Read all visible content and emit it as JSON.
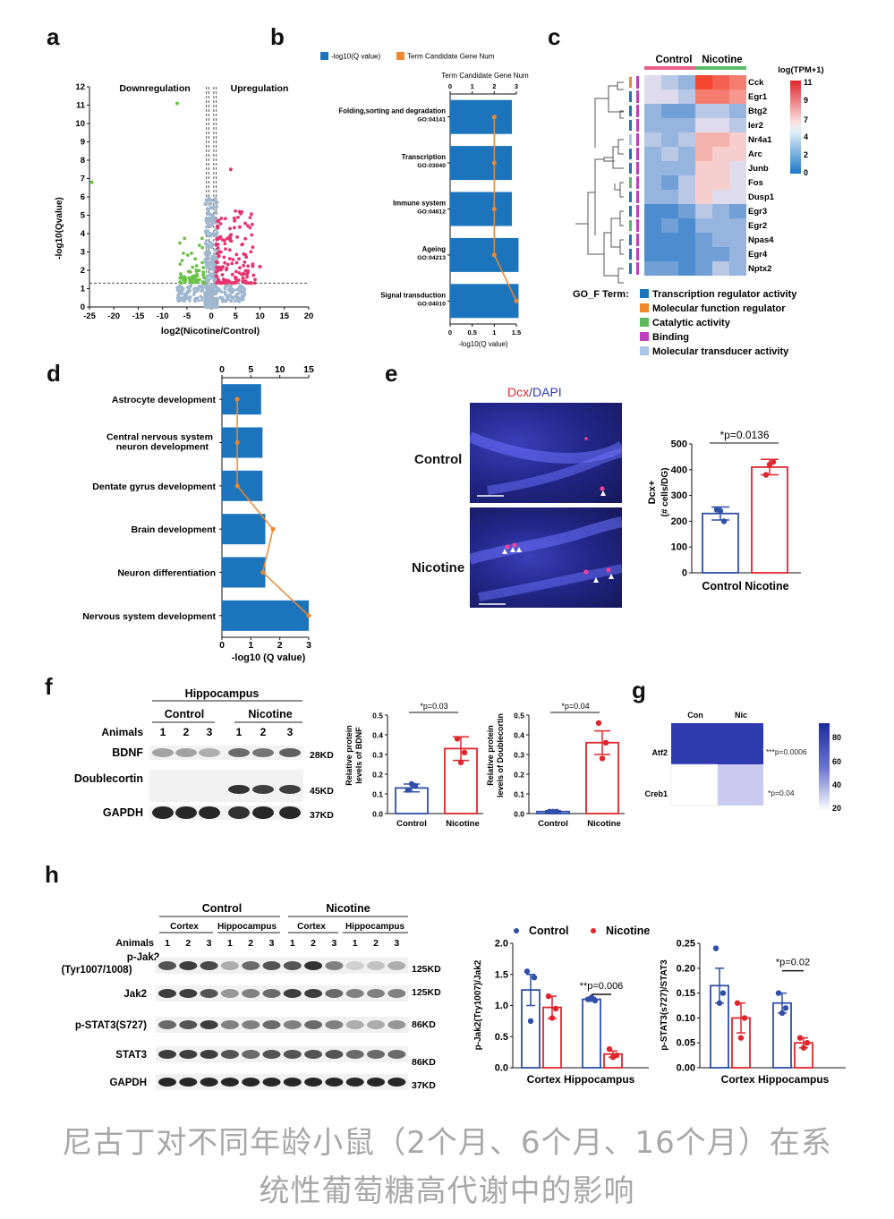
{
  "panels": {
    "a": "a",
    "b": "b",
    "c": "c",
    "d": "d",
    "e": "e",
    "f": "f",
    "g": "g",
    "h": "h"
  },
  "panel_a": {
    "left_label": "Downregulation",
    "right_label": "Upregulation",
    "xlabel": "log2(Nicotine/Control)",
    "ylabel": "-log10(Qvalue)",
    "xticks": [
      "-25",
      "-20",
      "-15",
      "-10",
      "-5",
      "0",
      "5",
      "10",
      "15",
      "20"
    ],
    "yticks": [
      "0",
      "1",
      "2",
      "3",
      "4",
      "5",
      "6",
      "7",
      "8",
      "9",
      "10",
      "11",
      "12"
    ],
    "colors": {
      "down": "#6cc24a",
      "up": "#e8336f",
      "ns": "#9fb7cf"
    }
  },
  "panel_b": {
    "legend_q": "-log10(Q value)",
    "legend_num": "Term Candidate Gene Num",
    "top_axis_title": "Term Candidate Gene Num",
    "top_ticks": [
      "0",
      "1",
      "2",
      "3"
    ],
    "bottom_ticks": [
      "0",
      "0.5",
      "1",
      "1.5"
    ],
    "xlabel": "-log10(Q value)",
    "terms": [
      {
        "name": "Folding,sorting and degradation",
        "id": "GO:04141"
      },
      {
        "name": "Transcription",
        "id": "GO:03040"
      },
      {
        "name": "Immune system",
        "id": "GO:04612"
      },
      {
        "name": "Ageing",
        "id": "GO:04213"
      },
      {
        "name": "Signal transduction",
        "id": "GO:04010"
      }
    ],
    "colors": {
      "bar": "#1c75bc",
      "line": "#f0882c"
    }
  },
  "panel_c": {
    "group_control": "Control",
    "group_nicotine": "Nicotine",
    "scale_title": "log(TPM+1)",
    "scale_ticks": [
      "11",
      "9",
      "7",
      "4",
      "2",
      "0"
    ],
    "genes": [
      "Cck",
      "Egr1",
      "Btg2",
      "Ier2",
      "Nr4a1",
      "Arc",
      "Junb",
      "Fos",
      "Dusp1",
      "Egr3",
      "Egr2",
      "Npas4",
      "Egr4",
      "Nptx2"
    ],
    "go_title": "GO_F Term:",
    "go_terms": [
      {
        "label": "Transcription regulator activity",
        "color": "#1c75bc"
      },
      {
        "label": "Molecular function regulator",
        "color": "#f0882c"
      },
      {
        "label": "Catalytic activity",
        "color": "#5cb85c"
      },
      {
        "label": "Binding",
        "color": "#c03fbf"
      },
      {
        "label": "Molecular transducer activity",
        "color": "#a9c6e8"
      }
    ]
  },
  "panel_d": {
    "top_ticks": [
      "0",
      "5",
      "10",
      "15"
    ],
    "bottom_ticks": [
      "0",
      "1",
      "2",
      "3"
    ],
    "xlabel": "-log10 (Q value)",
    "terms": [
      "Astrocyte development",
      "Central nervous system",
      "neuron development",
      "Dentate gyrus development",
      "Brain development",
      "Neuron differentiation",
      "Nervous system development"
    ]
  },
  "panel_e": {
    "stain_dcx": "Dcx",
    "stain_sep": "/",
    "stain_dapi": "DAPI",
    "row_control": "Control",
    "row_nicotine": "Nicotine",
    "pvalue": "*p=0.0136",
    "ylabel": "Dcx+",
    "ylabel2": "(# cells/DG)",
    "yticks": [
      "0",
      "100",
      "200",
      "300",
      "400",
      "500"
    ],
    "xcats": "Control Nicotine"
  },
  "panel_f": {
    "region": "Hippocampus",
    "group_control": "Control",
    "group_nicotine": "Nicotine",
    "animals_label": "Animals",
    "animal_ids": [
      "1",
      "2",
      "3",
      "1",
      "2",
      "3"
    ],
    "proteins": [
      {
        "name": "BDNF",
        "kd": "28KD"
      },
      {
        "name": "Doublecortin",
        "kd": "45KD"
      },
      {
        "name": "GAPDH",
        "kd": "37KD"
      }
    ],
    "bdnf_ylabel": "Relative protein",
    "bdnf_ylabel2": "levels of BDNF",
    "bdnf_p": "*p=0.03",
    "dcx_ylabel": "Relative protein",
    "dcx_ylabel2": "levels of Doublecortin",
    "dcx_p": "*p=0.04",
    "yticks": [
      "0.0",
      "0.1",
      "0.2",
      "0.3",
      "0.4",
      "0.5"
    ],
    "xcat_control": "Control",
    "xcat_nicotine": "Nicotine"
  },
  "panel_g": {
    "col_con": "Con",
    "col_nic": "Nic",
    "row_atf2": "Atf2",
    "row_creb1": "Creb1",
    "p_atf2": "***p=0.0006",
    "p_creb1": "*p=0.04",
    "scale_ticks": [
      "80",
      "60",
      "40",
      "20"
    ]
  },
  "panel_h": {
    "group_control": "Control",
    "group_nicotine": "Nicotine",
    "sub_cortex": "Cortex",
    "sub_hippo": "Hippocampus",
    "animals_label": "Animals",
    "animal_ids": [
      "1",
      "2",
      "3",
      "1",
      "2",
      "3",
      "1",
      "2",
      "3",
      "1",
      "2",
      "3"
    ],
    "proteins": [
      {
        "name": "p-Jak2",
        "name2": "(Tyr1007/1008)",
        "kd": "125KD"
      },
      {
        "name": "Jak2",
        "name2": "",
        "kd": "125KD"
      },
      {
        "name": "p-STAT3(S727)",
        "name2": "",
        "kd": "86KD"
      },
      {
        "name": "STAT3",
        "name2": "",
        "kd": "86KD"
      },
      {
        "name": "GAPDH",
        "name2": "",
        "kd": "37KD"
      }
    ],
    "legend_control": "Control",
    "legend_nicotine": "Nicotine",
    "jak_ylabel": "p-Jak2(Try1007)/Jak2",
    "jak_yticks": [
      "0.0",
      "0.5",
      "1.0",
      "1.5",
      "2.0"
    ],
    "jak_p": "**p=0.006",
    "stat_ylabel": "p-STAT3(s727)/STAT3",
    "stat_yticks": [
      "0.00",
      "0.05",
      "0.10",
      "0.15",
      "0.20",
      "0.25"
    ],
    "stat_p": "*p=0.02",
    "xcats": "Cortex Hippocampus"
  },
  "chart_data": [
    {
      "type": "bar",
      "panel": "e",
      "categories": [
        "Control",
        "Nicotine"
      ],
      "values": [
        230,
        410
      ],
      "errors": [
        25,
        30
      ],
      "points": [
        [
          245,
          200,
          240
        ],
        [
          380,
          430,
          420
        ]
      ],
      "ylim": [
        0,
        500
      ],
      "ylabel": "Dcx+ (# cells/DG)"
    },
    {
      "type": "bar",
      "panel": "f-bdnf",
      "categories": [
        "Control",
        "Nicotine"
      ],
      "values": [
        0.13,
        0.33
      ],
      "errors": [
        0.02,
        0.06
      ],
      "points": [
        [
          0.12,
          0.14,
          0.15
        ],
        [
          0.38,
          0.31,
          0.26
        ]
      ],
      "ylim": [
        0,
        0.5
      ],
      "ylabel": "Relative protein levels of BDNF"
    },
    {
      "type": "bar",
      "panel": "f-dcx",
      "categories": [
        "Control",
        "Nicotine"
      ],
      "values": [
        0.01,
        0.36
      ],
      "errors": [
        0.005,
        0.06
      ],
      "points": [
        [
          0.01,
          0.01,
          0.01
        ],
        [
          0.46,
          0.36,
          0.28
        ]
      ],
      "ylim": [
        0,
        0.5
      ],
      "ylabel": "Relative protein levels of Doublecortin"
    },
    {
      "type": "bar",
      "panel": "h-jak",
      "categories": [
        "Cortex",
        "Hippocampus"
      ],
      "series": [
        {
          "name": "Control",
          "values": [
            1.25,
            1.1
          ],
          "errors": [
            0.25,
            0.03
          ],
          "points": [
            [
              1.55,
              1.45,
              0.75
            ],
            [
              1.1,
              1.08,
              1.13
            ]
          ]
        },
        {
          "name": "Nicotine",
          "values": [
            0.97,
            0.22
          ],
          "errors": [
            0.18,
            0.05
          ],
          "points": [
            [
              1.15,
              0.95,
              0.8
            ],
            [
              0.3,
              0.2,
              0.17
            ]
          ]
        }
      ],
      "ylim": [
        0,
        2.0
      ],
      "ylabel": "p-Jak2(Try1007)/Jak2"
    },
    {
      "type": "bar",
      "panel": "h-stat",
      "categories": [
        "Cortex",
        "Hippocampus"
      ],
      "series": [
        {
          "name": "Control",
          "values": [
            0.165,
            0.13
          ],
          "errors": [
            0.035,
            0.02
          ],
          "points": [
            [
              0.24,
              0.15,
              0.13
            ],
            [
              0.15,
              0.12,
              0.11
            ]
          ]
        },
        {
          "name": "Nicotine",
          "values": [
            0.1,
            0.05
          ],
          "errors": [
            0.03,
            0.01
          ],
          "points": [
            [
              0.13,
              0.1,
              0.06
            ],
            [
              0.06,
              0.05,
              0.04
            ]
          ]
        }
      ],
      "ylim": [
        0,
        0.25
      ],
      "ylabel": "p-STAT3(s727)/STAT3"
    },
    {
      "type": "bar",
      "panel": "b",
      "categories": [
        "Folding,sorting and degradation",
        "Transcription",
        "Immune system",
        "Ageing",
        "Signal transduction"
      ],
      "values": [
        1.4,
        1.4,
        1.4,
        1.55,
        1.55
      ],
      "line_values": [
        2.0,
        2.0,
        2.0,
        2.0,
        3.0
      ],
      "xlim": [
        0,
        1.5
      ]
    },
    {
      "type": "bar",
      "panel": "d",
      "categories": [
        "Astrocyte development",
        "Central nervous system neuron development",
        "Dentate gyrus development",
        "Brain development",
        "Neuron differentiation",
        "Nervous system development"
      ],
      "values": [
        1.4,
        1.45,
        1.45,
        1.55,
        1.55,
        3.1
      ],
      "line_values": [
        3,
        3,
        3,
        10,
        8,
        17
      ],
      "xlim": [
        0,
        3
      ]
    }
  ]
}
